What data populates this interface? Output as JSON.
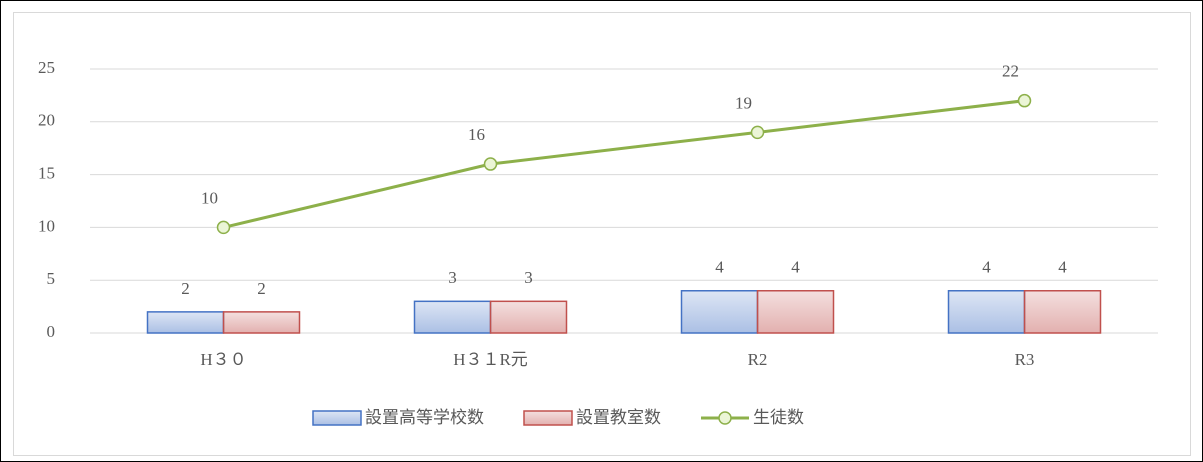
{
  "chart_data": {
    "type": "combo",
    "categories": [
      "H３０",
      "H３１R元",
      "R2",
      "R3"
    ],
    "series": [
      {
        "name": "設置高等学校数",
        "type": "bar",
        "color": "#4472c4",
        "values": [
          2,
          3,
          4,
          4
        ]
      },
      {
        "name": "設置教室数",
        "type": "bar",
        "color": "#c0504d",
        "values": [
          2,
          3,
          4,
          4
        ]
      },
      {
        "name": "生徒数",
        "type": "line",
        "color": "#8db04a",
        "values": [
          10,
          16,
          19,
          22
        ]
      }
    ],
    "ylim": [
      0,
      25
    ],
    "yticks": [
      0,
      5,
      10,
      15,
      20,
      25
    ],
    "grid": true,
    "legend": "bottom"
  }
}
